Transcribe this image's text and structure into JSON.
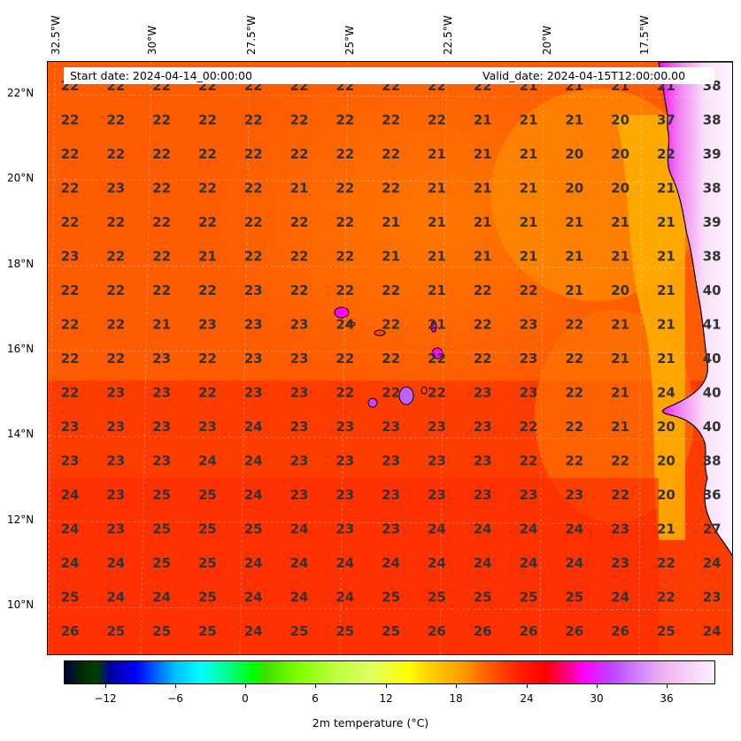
{
  "header": {
    "start_date": "Start date: 2024-04-14_00:00:00",
    "valid_date": "Valid_date: 2024-04-15T12:00:00.00"
  },
  "axes": {
    "lon_labels": [
      "32.5°W",
      "30°W",
      "27.5°W",
      "25°W",
      "22.5°W",
      "20°W",
      "17.5°W"
    ],
    "lat_labels": [
      "22°N",
      "20°N",
      "18°N",
      "16°N",
      "14°N",
      "12°N",
      "10°N"
    ]
  },
  "colorbar": {
    "label": "2m temperature ($^\\circ$C)",
    "label_display": "2m temperature (°C)",
    "ticks": [
      "−12",
      "−6",
      "0",
      "6",
      "12",
      "18",
      "24",
      "30",
      "36"
    ],
    "range": [
      -15,
      40
    ]
  },
  "grid_values": [
    [
      "22",
      "22",
      "22",
      "22",
      "22",
      "22",
      "22",
      "22",
      "22",
      "22",
      "21",
      "21",
      "21",
      "21",
      "38"
    ],
    [
      "22",
      "22",
      "22",
      "22",
      "22",
      "22",
      "22",
      "22",
      "22",
      "21",
      "21",
      "21",
      "20",
      "37",
      "38"
    ],
    [
      "22",
      "22",
      "22",
      "22",
      "22",
      "22",
      "22",
      "22",
      "21",
      "21",
      "21",
      "20",
      "20",
      "22",
      "39"
    ],
    [
      "22",
      "23",
      "22",
      "22",
      "22",
      "21",
      "22",
      "22",
      "21",
      "21",
      "21",
      "20",
      "20",
      "21",
      "38"
    ],
    [
      "22",
      "22",
      "22",
      "22",
      "22",
      "22",
      "22",
      "21",
      "21",
      "21",
      "21",
      "21",
      "21",
      "21",
      "39"
    ],
    [
      "23",
      "22",
      "22",
      "21",
      "22",
      "22",
      "22",
      "21",
      "21",
      "21",
      "21",
      "21",
      "21",
      "21",
      "38"
    ],
    [
      "22",
      "22",
      "22",
      "22",
      "23",
      "22",
      "22",
      "22",
      "21",
      "22",
      "22",
      "21",
      "20",
      "21",
      "40"
    ],
    [
      "22",
      "22",
      "21",
      "23",
      "23",
      "23",
      "24",
      "22",
      "21",
      "22",
      "23",
      "22",
      "21",
      "21",
      "41"
    ],
    [
      "22",
      "22",
      "23",
      "22",
      "23",
      "23",
      "22",
      "22",
      "22",
      "22",
      "23",
      "22",
      "21",
      "21",
      "40"
    ],
    [
      "22",
      "23",
      "23",
      "22",
      "23",
      "23",
      "22",
      "22",
      "22",
      "23",
      "23",
      "22",
      "21",
      "24",
      "40"
    ],
    [
      "23",
      "23",
      "23",
      "23",
      "24",
      "23",
      "23",
      "23",
      "23",
      "23",
      "22",
      "22",
      "21",
      "20",
      "40"
    ],
    [
      "23",
      "23",
      "23",
      "24",
      "24",
      "23",
      "23",
      "23",
      "23",
      "23",
      "22",
      "22",
      "22",
      "20",
      "38"
    ],
    [
      "24",
      "23",
      "25",
      "25",
      "24",
      "23",
      "23",
      "23",
      "23",
      "23",
      "23",
      "23",
      "22",
      "20",
      "36"
    ],
    [
      "24",
      "23",
      "25",
      "25",
      "25",
      "24",
      "23",
      "23",
      "24",
      "24",
      "24",
      "24",
      "23",
      "21",
      "27"
    ],
    [
      "24",
      "24",
      "25",
      "25",
      "24",
      "24",
      "24",
      "24",
      "24",
      "24",
      "24",
      "24",
      "23",
      "22",
      "24"
    ],
    [
      "25",
      "24",
      "24",
      "25",
      "24",
      "24",
      "24",
      "25",
      "25",
      "25",
      "25",
      "25",
      "24",
      "22",
      "23"
    ],
    [
      "26",
      "25",
      "25",
      "25",
      "24",
      "25",
      "25",
      "25",
      "26",
      "26",
      "26",
      "26",
      "26",
      "25",
      "24"
    ]
  ],
  "colors": {
    "ocean_base": "#ff4a00",
    "ocean_warm": "#ff2400",
    "land_hot": "#f7d7f7",
    "coast_line": "#000000"
  }
}
